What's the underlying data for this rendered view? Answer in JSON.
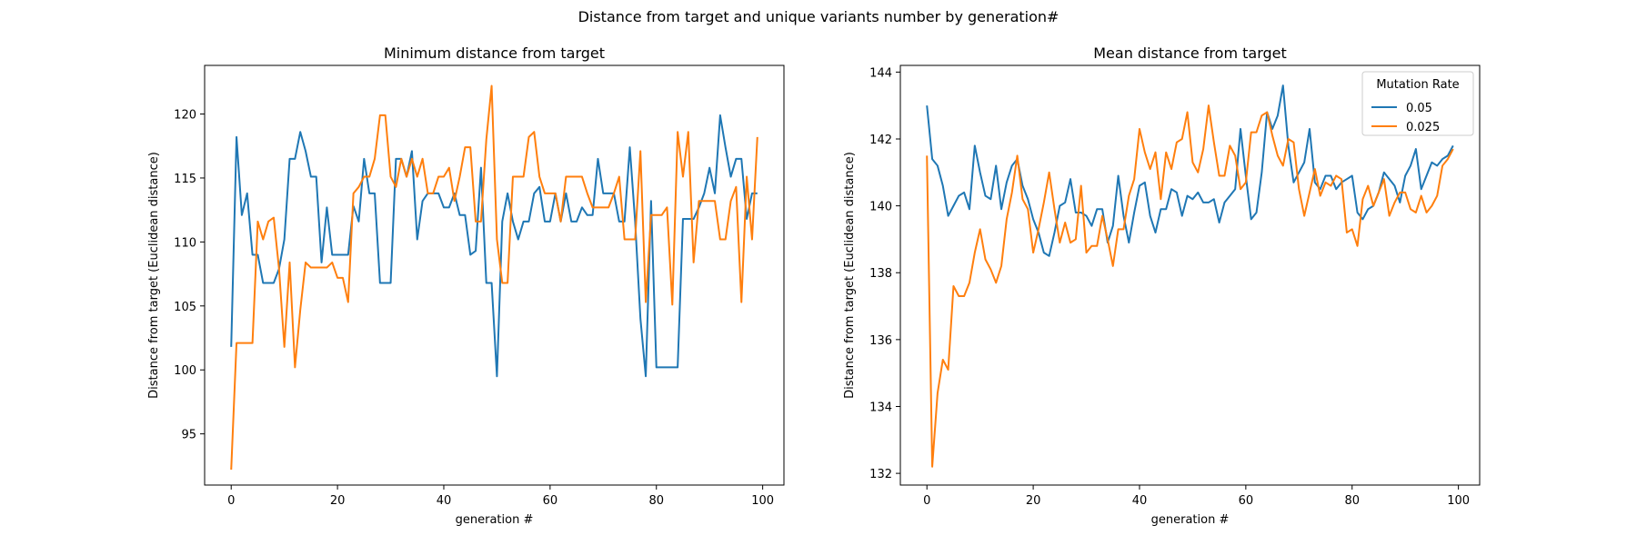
{
  "figure": {
    "suptitle": "Distance from target and unique variants number by generation#"
  },
  "colors": {
    "series_0": "#1f77b4",
    "series_1": "#ff7f0e",
    "axis": "#000000",
    "legend_border": "#cccccc"
  },
  "chart_data": [
    {
      "type": "line",
      "title": "Minimum distance from target",
      "xlabel": "generation #",
      "ylabel": "Distance from target (Euclidean distance)",
      "xlim": [
        -5,
        104
      ],
      "ylim": [
        91,
        123.8
      ],
      "xticks": [
        0,
        20,
        40,
        60,
        80,
        100
      ],
      "yticks": [
        95,
        100,
        105,
        110,
        115,
        120
      ],
      "grid": false,
      "legend": null,
      "x": [
        0,
        1,
        2,
        3,
        4,
        5,
        6,
        7,
        8,
        9,
        10,
        11,
        12,
        13,
        14,
        15,
        16,
        17,
        18,
        19,
        20,
        21,
        22,
        23,
        24,
        25,
        26,
        27,
        28,
        29,
        30,
        31,
        32,
        33,
        34,
        35,
        36,
        37,
        38,
        39,
        40,
        41,
        42,
        43,
        44,
        45,
        46,
        47,
        48,
        49,
        50,
        51,
        52,
        53,
        54,
        55,
        56,
        57,
        58,
        59,
        60,
        61,
        62,
        63,
        64,
        65,
        66,
        67,
        68,
        69,
        70,
        71,
        72,
        73,
        74,
        75,
        76,
        77,
        78,
        79,
        80,
        81,
        82,
        83,
        84,
        85,
        86,
        87,
        88,
        89,
        90,
        91,
        92,
        93,
        94,
        95,
        96,
        97,
        98,
        99
      ],
      "series": [
        {
          "name": "0.05",
          "values": [
            101.8,
            118.2,
            112.1,
            113.8,
            109.0,
            109.0,
            106.8,
            106.8,
            106.8,
            107.9,
            110.2,
            116.5,
            116.5,
            118.6,
            117.1,
            115.1,
            115.1,
            108.4,
            112.7,
            109.0,
            109.0,
            109.0,
            109.0,
            112.8,
            111.6,
            116.5,
            113.8,
            113.8,
            106.8,
            106.8,
            106.8,
            116.5,
            116.5,
            115.1,
            117.1,
            110.2,
            113.2,
            113.8,
            113.8,
            113.8,
            112.7,
            112.7,
            113.8,
            112.1,
            112.1,
            109.0,
            109.3,
            115.8,
            106.8,
            106.8,
            99.5,
            111.6,
            113.8,
            111.6,
            110.2,
            111.6,
            111.6,
            113.8,
            114.3,
            111.6,
            111.6,
            113.8,
            111.6,
            113.8,
            111.6,
            111.6,
            112.7,
            112.1,
            112.1,
            116.5,
            113.8,
            113.8,
            113.8,
            111.6,
            111.6,
            117.4,
            111.6,
            104.0,
            99.5,
            113.2,
            100.2,
            100.2,
            100.2,
            100.2,
            100.2,
            111.8,
            111.8,
            111.8,
            112.7,
            113.8,
            115.8,
            113.8,
            119.9,
            117.4,
            115.1,
            116.5,
            116.5,
            111.8,
            113.8,
            113.8
          ]
        },
        {
          "name": "0.025",
          "values": [
            92.2,
            102.1,
            102.1,
            102.1,
            102.1,
            111.6,
            110.2,
            111.6,
            111.9,
            107.9,
            101.8,
            108.4,
            100.2,
            104.7,
            108.4,
            108.0,
            108.0,
            108.0,
            108.0,
            108.4,
            107.2,
            107.2,
            105.3,
            113.8,
            114.3,
            115.1,
            115.1,
            116.5,
            119.9,
            119.9,
            115.1,
            114.3,
            116.5,
            115.1,
            116.5,
            115.1,
            116.5,
            113.8,
            113.8,
            115.1,
            115.1,
            115.8,
            113.2,
            115.1,
            117.4,
            117.4,
            111.6,
            111.6,
            118.0,
            122.2,
            110.2,
            106.8,
            106.8,
            115.1,
            115.1,
            115.1,
            118.2,
            118.6,
            115.1,
            113.8,
            113.8,
            113.8,
            111.6,
            115.1,
            115.1,
            115.1,
            115.1,
            113.8,
            112.7,
            112.7,
            112.7,
            112.7,
            113.8,
            115.1,
            110.2,
            110.2,
            110.2,
            117.1,
            105.3,
            112.1,
            112.1,
            112.1,
            112.7,
            105.1,
            118.6,
            115.1,
            118.6,
            108.4,
            113.2,
            113.2,
            113.2,
            113.2,
            110.2,
            110.2,
            113.2,
            114.3,
            105.3,
            115.1,
            110.2,
            118.2
          ]
        }
      ]
    },
    {
      "type": "line",
      "title": "Mean distance from target",
      "xlabel": "generation #",
      "ylabel": "Distance from target (Euclidean distance)",
      "xlim": [
        -5,
        104
      ],
      "ylim": [
        131.65,
        144.2
      ],
      "xticks": [
        0,
        20,
        40,
        60,
        80,
        100
      ],
      "yticks": [
        132,
        134,
        136,
        138,
        140,
        142,
        144
      ],
      "grid": false,
      "legend": {
        "title": "Mutation Rate",
        "location": "top-right"
      },
      "x": [
        0,
        1,
        2,
        3,
        4,
        5,
        6,
        7,
        8,
        9,
        10,
        11,
        12,
        13,
        14,
        15,
        16,
        17,
        18,
        19,
        20,
        21,
        22,
        23,
        24,
        25,
        26,
        27,
        28,
        29,
        30,
        31,
        32,
        33,
        34,
        35,
        36,
        37,
        38,
        39,
        40,
        41,
        42,
        43,
        44,
        45,
        46,
        47,
        48,
        49,
        50,
        51,
        52,
        53,
        54,
        55,
        56,
        57,
        58,
        59,
        60,
        61,
        62,
        63,
        64,
        65,
        66,
        67,
        68,
        69,
        70,
        71,
        72,
        73,
        74,
        75,
        76,
        77,
        78,
        79,
        80,
        81,
        82,
        83,
        84,
        85,
        86,
        87,
        88,
        89,
        90,
        91,
        92,
        93,
        94,
        95,
        96,
        97,
        98,
        99
      ],
      "series": [
        {
          "name": "0.05",
          "values": [
            143.0,
            141.4,
            141.2,
            140.6,
            139.7,
            140.0,
            140.3,
            140.4,
            139.9,
            141.8,
            141.0,
            140.3,
            140.2,
            141.2,
            139.9,
            140.7,
            141.2,
            141.4,
            140.6,
            140.2,
            139.6,
            139.2,
            138.6,
            138.5,
            139.2,
            140.0,
            140.1,
            140.8,
            139.8,
            139.8,
            139.7,
            139.4,
            139.9,
            139.9,
            138.9,
            139.4,
            140.9,
            139.7,
            138.9,
            139.8,
            140.6,
            140.7,
            139.7,
            139.2,
            139.9,
            139.9,
            140.5,
            140.4,
            139.7,
            140.3,
            140.2,
            140.4,
            140.1,
            140.1,
            140.2,
            139.5,
            140.1,
            140.3,
            140.5,
            142.3,
            140.9,
            139.6,
            139.8,
            141.0,
            142.8,
            142.3,
            142.7,
            143.6,
            141.8,
            140.7,
            141.0,
            141.3,
            142.3,
            140.7,
            140.5,
            140.9,
            140.9,
            140.5,
            140.7,
            140.8,
            140.9,
            139.8,
            139.6,
            139.9,
            140.0,
            140.4,
            141.0,
            140.8,
            140.6,
            140.1,
            140.9,
            141.2,
            141.7,
            140.5,
            140.9,
            141.3,
            141.2,
            141.4,
            141.5,
            141.8
          ]
        },
        {
          "name": "0.025",
          "values": [
            141.5,
            132.2,
            134.4,
            135.4,
            135.1,
            137.6,
            137.3,
            137.3,
            137.7,
            138.6,
            139.3,
            138.4,
            138.1,
            137.7,
            138.2,
            139.6,
            140.4,
            141.5,
            140.2,
            139.9,
            138.6,
            139.3,
            140.1,
            141.0,
            139.9,
            138.9,
            139.5,
            138.9,
            139.0,
            140.6,
            138.6,
            138.8,
            138.8,
            139.7,
            139.0,
            138.2,
            139.3,
            139.3,
            140.3,
            140.8,
            142.3,
            141.6,
            141.1,
            141.6,
            140.2,
            141.6,
            141.1,
            141.9,
            142.0,
            142.8,
            141.3,
            141.0,
            141.7,
            143.0,
            141.9,
            140.9,
            140.9,
            141.8,
            141.5,
            140.5,
            140.7,
            142.2,
            142.2,
            142.7,
            142.8,
            142.1,
            141.5,
            141.2,
            142.0,
            141.9,
            140.5,
            139.7,
            140.4,
            141.1,
            140.3,
            140.7,
            140.6,
            140.9,
            140.8,
            139.2,
            139.3,
            138.8,
            140.2,
            140.6,
            140.0,
            140.4,
            140.8,
            139.7,
            140.1,
            140.4,
            140.4,
            139.9,
            139.8,
            140.3,
            139.8,
            140.0,
            140.3,
            141.2,
            141.4,
            141.7
          ]
        }
      ]
    }
  ]
}
